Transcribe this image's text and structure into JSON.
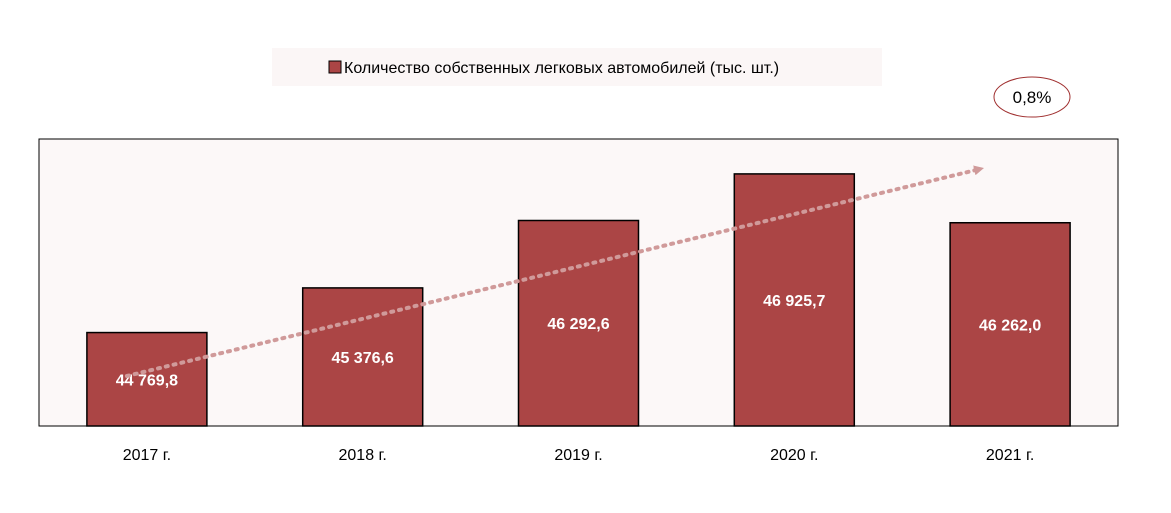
{
  "chart_data": {
    "type": "bar",
    "title": "",
    "xlabel": "",
    "ylabel": "",
    "categories": [
      "2017 г.",
      "2018 г.",
      "2019 г.",
      "2020 г.",
      "2021 г."
    ],
    "series": [
      {
        "name": "Количество собственных легковых автомобилей (тыс. шт.)",
        "values": [
          44769.8,
          45376.6,
          46292.6,
          46925.7,
          46262.0
        ],
        "value_labels": [
          "44 769,8",
          "45 376,6",
          "46 292,6",
          "46 925,7",
          "46 262,0"
        ]
      }
    ],
    "ylim": [
      43500,
      47400
    ],
    "legend": {
      "position": "top-center"
    },
    "grid": false,
    "trend_annotation": "0,8%",
    "colors": {
      "bar": "#ab4545",
      "bar_border": "#000000",
      "plot_background": "#fcf8f8",
      "legend_background": "#fbf6f6",
      "trend_arrow": "#d09a9a",
      "annotation_border": "#a03030",
      "value_label": "#ffffff",
      "axis_text": "#000000"
    }
  }
}
